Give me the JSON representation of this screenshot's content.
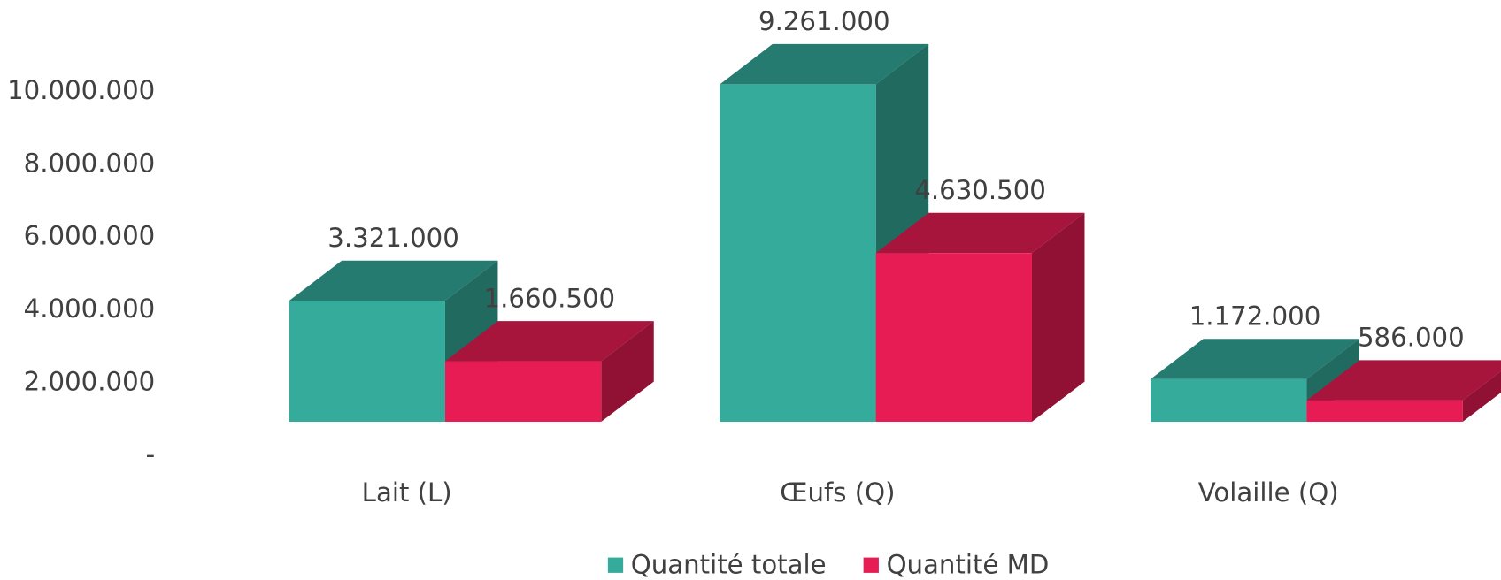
{
  "chart_data": {
    "type": "bar3d",
    "categories": [
      "Lait (L)",
      "Œufs (Q)",
      "Volaille (Q)"
    ],
    "series": [
      {
        "name": "Quantité totale",
        "color": "#35ab9b",
        "values": [
          3321000,
          9261000,
          1172000
        ],
        "value_labels": [
          "3.321.000",
          "9.261.000",
          "1.172.000"
        ]
      },
      {
        "name": "Quantité MD",
        "color": "#e81c54",
        "values": [
          1660500,
          4630500,
          586000
        ],
        "value_labels": [
          "1.660.500",
          "4.630.500",
          "586.000"
        ]
      }
    ],
    "ylim": [
      0,
      10000000
    ],
    "yticks": [
      {
        "value": 0,
        "label": "-"
      },
      {
        "value": 2000000,
        "label": "2.000.000"
      },
      {
        "value": 4000000,
        "label": "4.000.000"
      },
      {
        "value": 6000000,
        "label": "6.000.000"
      },
      {
        "value": 8000000,
        "label": "8.000.000"
      },
      {
        "value": 10000000,
        "label": "10.000.000"
      }
    ],
    "grid": false,
    "legend": "bottom"
  }
}
